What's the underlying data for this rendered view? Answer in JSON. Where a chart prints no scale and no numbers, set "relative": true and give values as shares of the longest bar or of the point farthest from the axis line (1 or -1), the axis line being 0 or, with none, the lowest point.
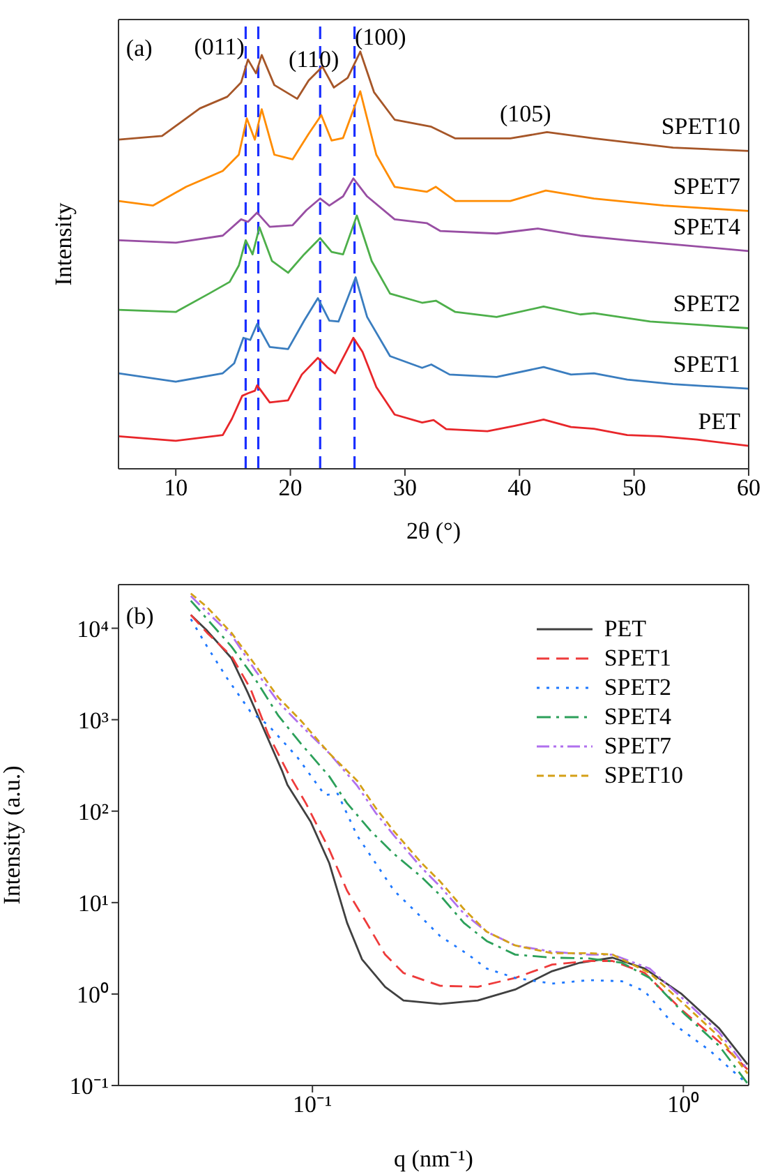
{
  "chart_data": [
    {
      "type": "line",
      "xlabel": "2θ (°)",
      "ylabel": "Intensity",
      "relative": true,
      "xlim": [
        5,
        60
      ],
      "xticks": [
        10,
        20,
        30,
        40,
        50,
        60
      ],
      "legend": false,
      "marker": "none",
      "line_style": "solid",
      "annotations": [
        "(a)",
        "(011)",
        "(110)",
        "(100)",
        "(105)"
      ],
      "ref_lines": [
        {
          "axis": "x",
          "value": 16.1,
          "color": "#1a2fff",
          "line_style": "dashed"
        },
        {
          "axis": "x",
          "value": 17.2,
          "color": "#1a2fff",
          "line_style": "dashed"
        },
        {
          "axis": "x",
          "value": 22.6,
          "color": "#1a2fff",
          "line_style": "dashed"
        },
        {
          "axis": "x",
          "value": 25.6,
          "color": "#1a2fff",
          "line_style": "dashed"
        }
      ],
      "series": [
        {
          "name": "PET",
          "color": "#e8262a",
          "x": [
            5,
            10,
            14.1,
            14.9,
            15.8,
            16.3,
            16.9,
            17.1,
            18.2,
            19.8,
            21,
            22.4,
            23.2,
            23.9,
            25,
            25.5,
            26.3,
            27.5,
            29.1,
            31.5,
            32.5,
            33.6,
            37.2,
            39.6,
            42.1,
            44.5,
            46.5,
            49.4,
            52.2,
            55.5,
            60
          ],
          "values": [
            0.078,
            0.067,
            0.081,
            0.12,
            0.175,
            0.181,
            0.187,
            0.2,
            0.159,
            0.164,
            0.226,
            0.266,
            0.244,
            0.229,
            0.287,
            0.314,
            0.28,
            0.196,
            0.13,
            0.111,
            0.117,
            0.095,
            0.09,
            0.103,
            0.118,
            0.1,
            0.096,
            0.081,
            0.078,
            0.07,
            0.055
          ]
        },
        {
          "name": "SPET1",
          "color": "#3a7dbf",
          "x": [
            5,
            10,
            14.1,
            15.1,
            15.9,
            16.5,
            17.1,
            18.2,
            19.8,
            21.2,
            22.4,
            23.4,
            24.2,
            25,
            25.7,
            26.7,
            28.7,
            31.5,
            32.3,
            33.9,
            38,
            42.1,
            44.5,
            46.5,
            49.4,
            53.4,
            60
          ],
          "values": [
            0.229,
            0.209,
            0.229,
            0.253,
            0.314,
            0.309,
            0.347,
            0.292,
            0.287,
            0.355,
            0.409,
            0.355,
            0.353,
            0.409,
            0.459,
            0.364,
            0.27,
            0.242,
            0.25,
            0.226,
            0.22,
            0.244,
            0.226,
            0.229,
            0.214,
            0.203,
            0.192
          ]
        },
        {
          "name": "SPET2",
          "color": "#4daf4a",
          "x": [
            5,
            10,
            12.9,
            14.7,
            15.5,
            16.1,
            16.7,
            17.3,
            18.4,
            19.8,
            21.2,
            22.6,
            23.6,
            24.6,
            25.8,
            27.1,
            28.7,
            31.5,
            32.7,
            34.4,
            38,
            42.1,
            45.3,
            46.5,
            51.4,
            60
          ],
          "values": [
            0.381,
            0.376,
            0.42,
            0.448,
            0.487,
            0.548,
            0.514,
            0.579,
            0.498,
            0.47,
            0.514,
            0.553,
            0.52,
            0.514,
            0.607,
            0.498,
            0.42,
            0.398,
            0.403,
            0.376,
            0.364,
            0.389,
            0.37,
            0.373,
            0.353,
            0.337
          ]
        },
        {
          "name": "SPET4",
          "color": "#984ea3",
          "x": [
            5,
            10,
            14.1,
            15.7,
            16.3,
            17.1,
            18.2,
            20.2,
            21.4,
            22.6,
            23.4,
            24.6,
            25.5,
            26.7,
            29.1,
            31.9,
            33.1,
            38,
            41.6,
            45.3,
            49.4,
            60
          ],
          "values": [
            0.548,
            0.542,
            0.559,
            0.598,
            0.592,
            0.614,
            0.58,
            0.584,
            0.62,
            0.648,
            0.631,
            0.653,
            0.696,
            0.653,
            0.598,
            0.589,
            0.57,
            0.564,
            0.576,
            0.559,
            0.548,
            0.522
          ]
        },
        {
          "name": "SPET7",
          "color": "#ff8c00",
          "x": [
            5,
            8,
            10.9,
            14.1,
            15.5,
            16.2,
            16.9,
            17.5,
            18.6,
            20.2,
            21.6,
            22.7,
            23.6,
            24.6,
            26.1,
            27.5,
            29.1,
            31.9,
            32.7,
            34.4,
            39.2,
            42.3,
            46.5,
            52.6,
            60
          ],
          "values": [
            0.642,
            0.631,
            0.676,
            0.714,
            0.753,
            0.84,
            0.789,
            0.862,
            0.753,
            0.742,
            0.803,
            0.848,
            0.787,
            0.793,
            0.905,
            0.753,
            0.676,
            0.664,
            0.676,
            0.642,
            0.642,
            0.667,
            0.648,
            0.631,
            0.618
          ]
        },
        {
          "name": "SPET10",
          "color": "#a65628",
          "x": [
            5,
            8.8,
            12.1,
            14.5,
            15.7,
            16.3,
            17,
            17.5,
            18.6,
            20.6,
            21.6,
            22.8,
            23.8,
            25,
            26.1,
            27.3,
            29.1,
            32.3,
            34.4,
            39.2,
            42.4,
            46.5,
            53.4,
            60
          ],
          "values": [
            0.789,
            0.798,
            0.864,
            0.892,
            0.926,
            0.981,
            0.948,
            0.992,
            0.92,
            0.887,
            0.931,
            0.964,
            0.914,
            0.937,
            1,
            0.903,
            0.837,
            0.82,
            0.792,
            0.792,
            0.807,
            0.792,
            0.77,
            0.762
          ]
        }
      ]
    },
    {
      "type": "line",
      "xlabel": "q (nm⁻¹)",
      "ylabel": "Intensity (a.u.)",
      "log": "xy",
      "xlim": [
        0.03,
        1.5
      ],
      "ylim": [
        0.1,
        30000
      ],
      "xticks": [
        {
          "value": 0.1,
          "label": "10⁻¹"
        },
        {
          "value": 1,
          "label": "10⁰"
        }
      ],
      "yticks": [
        {
          "value": 0.1,
          "label": "10⁻¹"
        },
        {
          "value": 1,
          "label": "10⁰"
        },
        {
          "value": 10,
          "label": "10¹"
        },
        {
          "value": 100,
          "label": "10²"
        },
        {
          "value": 1000,
          "label": "10³"
        },
        {
          "value": 10000,
          "label": "10⁴"
        }
      ],
      "legend": "top right",
      "marker": "none",
      "annotations": [
        "(b)"
      ],
      "series": [
        {
          "name": "PET",
          "color": "#404040",
          "line_style": "solid",
          "x": [
            0.047,
            0.052,
            0.0605,
            0.067,
            0.074,
            0.083,
            0.0856,
            0.099,
            0.111,
            0.124,
            0.136,
            0.157,
            0.176,
            0.221,
            0.279,
            0.352,
            0.443,
            0.526,
            0.644,
            0.787,
            0.99,
            1.25,
            1.49
          ],
          "values": [
            14000,
            9400,
            4700,
            1960,
            780,
            270,
            194,
            76,
            27,
            6,
            2.4,
            1.2,
            0.85,
            0.78,
            0.85,
            1.12,
            1.78,
            2.2,
            2.5,
            1.9,
            1,
            0.42,
            0.17
          ]
        },
        {
          "name": "SPET1",
          "color": "#ee3b3b",
          "line_style": "dashed",
          "x": [
            0.047,
            0.052,
            0.0605,
            0.068,
            0.076,
            0.0856,
            0.096,
            0.111,
            0.124,
            0.14,
            0.157,
            0.176,
            0.221,
            0.279,
            0.352,
            0.443,
            0.557,
            0.644,
            0.787,
            0.99,
            1.25,
            1.49
          ],
          "values": [
            14000,
            8900,
            4970,
            2200,
            690,
            270,
            122,
            38,
            13.5,
            6,
            2.7,
            1.7,
            1.23,
            1.2,
            1.5,
            2.1,
            2.3,
            2.3,
            1.7,
            0.67,
            0.3,
            0.15
          ]
        },
        {
          "name": "SPET2",
          "color": "#1e78ff",
          "line_style": "dotted",
          "x": [
            0.047,
            0.052,
            0.059,
            0.068,
            0.076,
            0.091,
            0.108,
            0.117,
            0.132,
            0.148,
            0.166,
            0.192,
            0.221,
            0.263,
            0.295,
            0.352,
            0.443,
            0.557,
            0.683,
            0.787,
            0.935,
            1.18,
            1.44,
            1.49
          ],
          "values": [
            12600,
            6300,
            2800,
            1230,
            870,
            390,
            150,
            155,
            54,
            27,
            13.5,
            7.6,
            4.3,
            2.7,
            1.9,
            1.5,
            1.3,
            1.42,
            1.38,
            1.07,
            0.48,
            0.24,
            0.117,
            0.1
          ]
        },
        {
          "name": "SPET4",
          "color": "#2ca05a",
          "line_style": "dashdot",
          "x": [
            0.047,
            0.052,
            0.0605,
            0.07,
            0.081,
            0.093,
            0.111,
            0.124,
            0.144,
            0.166,
            0.197,
            0.221,
            0.256,
            0.295,
            0.352,
            0.443,
            0.557,
            0.683,
            0.811,
            1.01,
            1.25,
            1.49
          ],
          "values": [
            20000,
            12600,
            6300,
            2800,
            1100,
            550,
            240,
            122,
            60,
            34,
            19,
            12,
            6,
            3.8,
            2.7,
            2.5,
            2.45,
            2.2,
            1.5,
            0.6,
            0.27,
            0.105
          ]
        },
        {
          "name": "SPET7",
          "color": "#b070ee",
          "line_style": "dashdotdot",
          "x": [
            0.047,
            0.052,
            0.0605,
            0.07,
            0.081,
            0.093,
            0.111,
            0.132,
            0.148,
            0.166,
            0.197,
            0.221,
            0.256,
            0.295,
            0.352,
            0.443,
            0.557,
            0.644,
            0.811,
            1.01,
            1.25,
            1.49
          ],
          "values": [
            22500,
            15000,
            8400,
            3500,
            1550,
            870,
            430,
            190,
            96,
            54,
            24,
            15,
            7.6,
            4.8,
            3.4,
            2.9,
            2.7,
            2.7,
            1.9,
            0.85,
            0.38,
            0.15
          ]
        },
        {
          "name": "SPET10",
          "color": "#d4a017",
          "line_style": "shortdash",
          "x": [
            0.047,
            0.052,
            0.0605,
            0.07,
            0.081,
            0.093,
            0.111,
            0.132,
            0.148,
            0.166,
            0.197,
            0.221,
            0.256,
            0.295,
            0.352,
            0.443,
            0.557,
            0.644,
            0.811,
            1.01,
            1.25,
            1.49
          ],
          "values": [
            24000,
            17000,
            8900,
            4000,
            1740,
            980,
            430,
            215,
            109,
            60,
            27,
            17,
            8.5,
            4.8,
            3.4,
            2.8,
            2.8,
            2.7,
            1.7,
            0.76,
            0.34,
            0.135
          ]
        }
      ]
    }
  ]
}
